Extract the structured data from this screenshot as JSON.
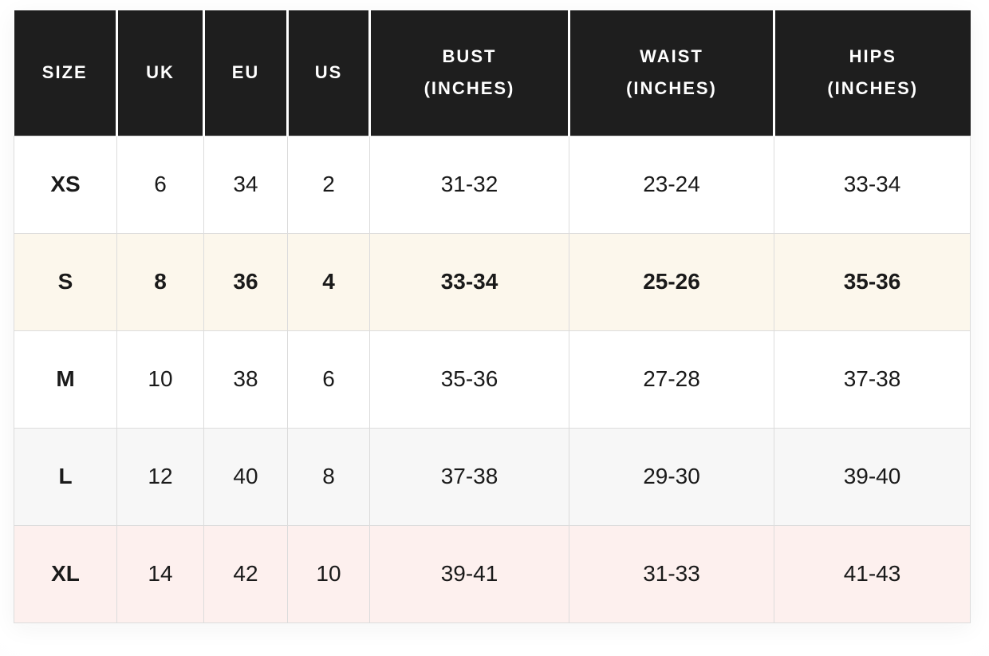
{
  "chart_data": {
    "type": "table",
    "columns": [
      "SIZE",
      "UK",
      "EU",
      "US",
      "BUST (INCHES)",
      "WAIST (INCHES)",
      "HIPS (INCHES)"
    ],
    "rows": [
      [
        "XS",
        "6",
        "34",
        "2",
        "31-32",
        "23-24",
        "33-34"
      ],
      [
        "S",
        "8",
        "36",
        "4",
        "33-34",
        "25-26",
        "35-36"
      ],
      [
        "M",
        "10",
        "38",
        "6",
        "35-36",
        "27-28",
        "37-38"
      ],
      [
        "L",
        "12",
        "40",
        "8",
        "37-38",
        "29-30",
        "39-40"
      ],
      [
        "XL",
        "14",
        "42",
        "10",
        "39-41",
        "31-33",
        "41-43"
      ]
    ],
    "layout_hints": {
      "header_style": "dark band, white bold uppercase text, white column dividers",
      "highlighted_rows": {
        "S": "cream, bold text",
        "L": "light gray",
        "XL": "light pink"
      }
    }
  },
  "table": {
    "header": {
      "size": "SIZE",
      "uk": "UK",
      "eu": "EU",
      "us": "US",
      "bust": "BUST\n(INCHES)",
      "waist": "WAIST\n(INCHES)",
      "hips": "HIPS\n(INCHES)"
    },
    "rows": [
      {
        "size": "XS",
        "uk": "6",
        "eu": "34",
        "us": "2",
        "bust": "31-32",
        "waist": "23-24",
        "hips": "33-34",
        "highlight": "none"
      },
      {
        "size": "S",
        "uk": "8",
        "eu": "36",
        "us": "4",
        "bust": "33-34",
        "waist": "25-26",
        "hips": "35-36",
        "highlight": "cream-bold"
      },
      {
        "size": "M",
        "uk": "10",
        "eu": "38",
        "us": "6",
        "bust": "35-36",
        "waist": "27-28",
        "hips": "37-38",
        "highlight": "none"
      },
      {
        "size": "L",
        "uk": "12",
        "eu": "40",
        "us": "8",
        "bust": "37-38",
        "waist": "29-30",
        "hips": "39-40",
        "highlight": "gray"
      },
      {
        "size": "XL",
        "uk": "14",
        "eu": "42",
        "us": "10",
        "bust": "39-41",
        "waist": "31-33",
        "hips": "41-43",
        "highlight": "pink"
      }
    ],
    "colors": {
      "header_bg": "#1e1e1e",
      "header_text": "#ffffff",
      "body_text": "#1a1a1a",
      "row_cream": "#fcf7ec",
      "row_gray": "#f7f7f7",
      "row_pink": "#fdf0ee",
      "cell_border": "#dcdcdc"
    }
  }
}
